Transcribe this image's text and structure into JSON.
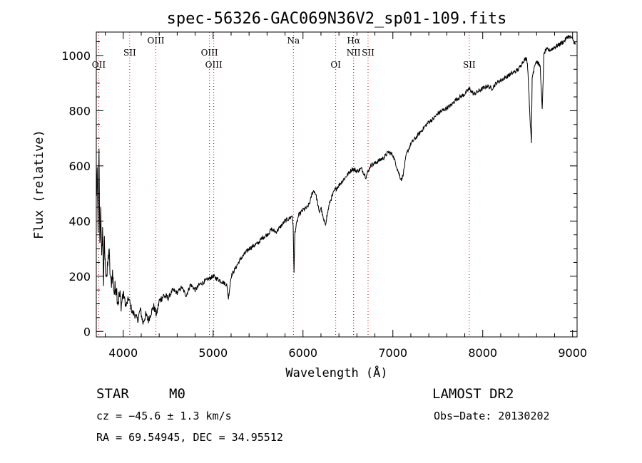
{
  "chart_data": {
    "type": "line",
    "title": "spec-56326-GAC069N36V2_sp01-109.fits",
    "xlabel": "Wavelength (Å)",
    "ylabel": "Flux (relative)",
    "xlim": [
      3700,
      9050
    ],
    "ylim": [
      -20,
      1085
    ],
    "x_ticks": [
      4000,
      5000,
      6000,
      7000,
      8000,
      9000
    ],
    "y_ticks": [
      0,
      200,
      400,
      600,
      800,
      1000
    ],
    "grid": false,
    "series": [
      {
        "x": [
          3700,
          3710,
          3720,
          3730,
          3740,
          3750,
          3760,
          3770,
          3780,
          3790,
          3800,
          3820,
          3840,
          3860,
          3880,
          3900,
          3920,
          3940,
          3960,
          3980,
          4000,
          4030,
          4060,
          4100,
          4130,
          4160,
          4190,
          4220,
          4250,
          4280,
          4310,
          4340,
          4370,
          4400,
          4450,
          4500,
          4550,
          4600,
          4650,
          4700,
          4750,
          4800,
          4850,
          4900,
          4950,
          5000,
          5050,
          5100,
          5150,
          5170,
          5200,
          5250,
          5300,
          5350,
          5400,
          5450,
          5500,
          5550,
          5600,
          5650,
          5700,
          5750,
          5800,
          5850,
          5880,
          5890,
          5895,
          5900,
          5910,
          5950,
          6000,
          6050,
          6080,
          6100,
          6120,
          6140,
          6160,
          6180,
          6200,
          6230,
          6250,
          6280,
          6300,
          6350,
          6400,
          6450,
          6500,
          6550,
          6600,
          6650,
          6700,
          6750,
          6800,
          6850,
          6900,
          6950,
          7000,
          7050,
          7080,
          7100,
          7120,
          7150,
          7200,
          7250,
          7300,
          7350,
          7400,
          7450,
          7500,
          7550,
          7600,
          7650,
          7700,
          7750,
          7800,
          7850,
          7900,
          7950,
          8000,
          8050,
          8100,
          8150,
          8200,
          8250,
          8300,
          8350,
          8400,
          8450,
          8490,
          8500,
          8530,
          8542,
          8550,
          8580,
          8600,
          8640,
          8662,
          8680,
          8700,
          8750,
          8800,
          8850,
          8900,
          8950,
          9000,
          9030
        ],
        "y": [
          480,
          560,
          380,
          640,
          300,
          470,
          250,
          380,
          180,
          320,
          240,
          200,
          300,
          170,
          210,
          140,
          170,
          110,
          130,
          100,
          140,
          90,
          120,
          70,
          60,
          40,
          80,
          30,
          60,
          40,
          70,
          90,
          60,
          110,
          130,
          120,
          150,
          140,
          160,
          130,
          170,
          150,
          170,
          180,
          190,
          200,
          190,
          180,
          170,
          120,
          200,
          230,
          260,
          280,
          300,
          310,
          320,
          340,
          350,
          370,
          360,
          380,
          400,
          410,
          420,
          380,
          310,
          210,
          360,
          420,
          440,
          450,
          470,
          500,
          510,
          500,
          470,
          430,
          450,
          400,
          390,
          440,
          470,
          510,
          530,
          550,
          570,
          590,
          580,
          590,
          560,
          600,
          610,
          620,
          630,
          650,
          640,
          590,
          560,
          550,
          580,
          640,
          680,
          700,
          720,
          740,
          760,
          770,
          790,
          800,
          810,
          820,
          840,
          850,
          860,
          880,
          860,
          870,
          880,
          890,
          880,
          900,
          910,
          920,
          930,
          940,
          950,
          980,
          990,
          960,
          750,
          680,
          920,
          970,
          980,
          960,
          800,
          1000,
          1020,
          1020,
          1030,
          1040,
          1050,
          1070,
          1060,
          1040
        ]
      }
    ],
    "line_markers": [
      {
        "name": "OII",
        "x": 3727,
        "row": 3
      },
      {
        "name": "SII",
        "x": 4072,
        "row": 2
      },
      {
        "name": "OIII",
        "x": 4363,
        "row": 1
      },
      {
        "name": "OIII",
        "x": 4959,
        "row": 2
      },
      {
        "name": "OIII",
        "x": 5007,
        "row": 3
      },
      {
        "name": "Na",
        "x": 5893,
        "row": 1
      },
      {
        "name": "OI",
        "x": 6364,
        "row": 3
      },
      {
        "name": "Hα",
        "x": 6563,
        "row": 1
      },
      {
        "name": "NII",
        "x": 6563,
        "row": 2
      },
      {
        "name": "SII",
        "x": 6724,
        "row": 2
      },
      {
        "name": "SII",
        "x": 7850,
        "row": 3
      }
    ],
    "marker_color": "#cc0000",
    "line_color": "#000000"
  },
  "info": {
    "class_label": "STAR",
    "subclass_label": "M0",
    "survey_label": "LAMOST DR2",
    "cz_text": "cz = −45.6 ± 1.3 km/s",
    "obsdate_text": "Obs−Date: 20130202",
    "radec_text": "RA =  69.54945, DEC =  34.95512"
  }
}
